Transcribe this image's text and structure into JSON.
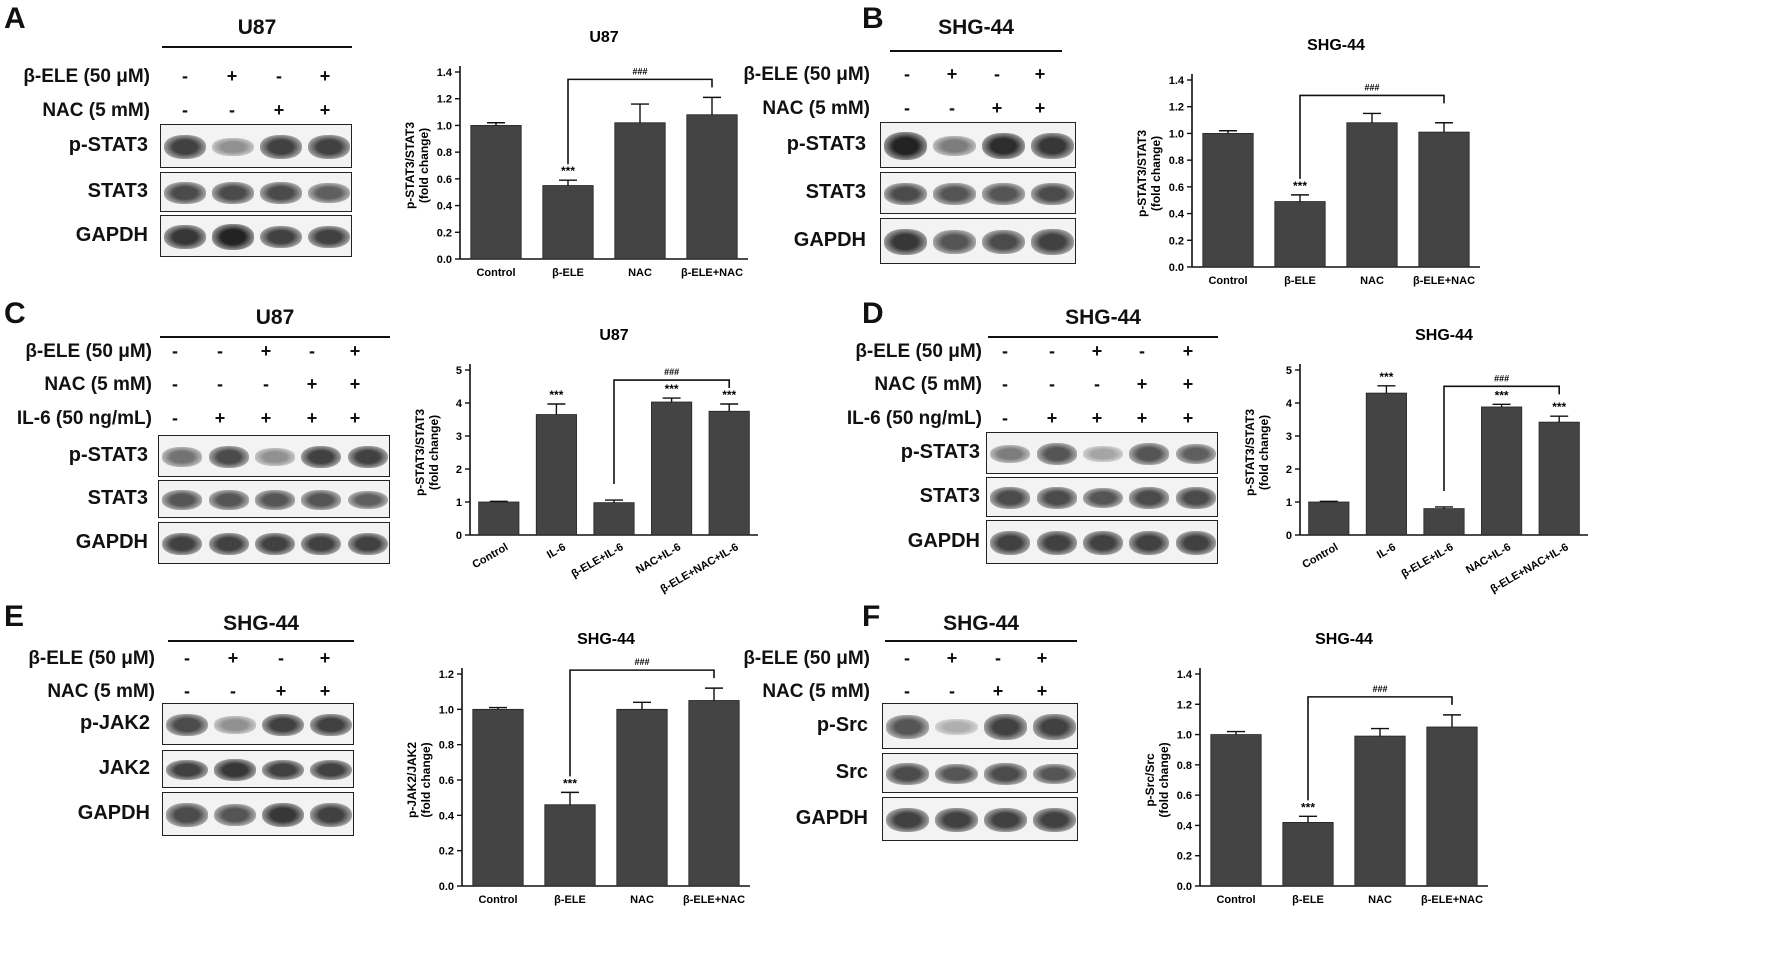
{
  "panels": [
    {
      "letter": "A",
      "cell_line": "U87",
      "treatments": [
        {
          "label": "β-ELE (50 μM)",
          "signs": [
            "-",
            "+",
            "-",
            "+"
          ]
        },
        {
          "label": "NAC (5 mM)",
          "signs": [
            "-",
            "-",
            "+",
            "+"
          ]
        }
      ],
      "blots": [
        {
          "label": "p-STAT3",
          "intensities": [
            0.85,
            0.45,
            0.85,
            0.85
          ]
        },
        {
          "label": "STAT3",
          "intensities": [
            0.8,
            0.8,
            0.8,
            0.7
          ]
        },
        {
          "label": "GAPDH",
          "intensities": [
            0.9,
            1.0,
            0.85,
            0.85
          ]
        }
      ]
    },
    {
      "letter": "B",
      "cell_line": "SHG-44",
      "treatments": [
        {
          "label": "β-ELE (50 μM)",
          "signs": [
            "-",
            "+",
            "-",
            "+"
          ]
        },
        {
          "label": "NAC (5 mM)",
          "signs": [
            "-",
            "-",
            "+",
            "+"
          ]
        }
      ],
      "blots": [
        {
          "label": "p-STAT3",
          "intensities": [
            1.0,
            0.55,
            0.95,
            0.9
          ]
        },
        {
          "label": "STAT3",
          "intensities": [
            0.8,
            0.75,
            0.75,
            0.8
          ]
        },
        {
          "label": "GAPDH",
          "intensities": [
            0.9,
            0.75,
            0.8,
            0.85
          ]
        }
      ]
    },
    {
      "letter": "C",
      "cell_line": "U87",
      "treatments": [
        {
          "label": "β-ELE (50 μM)",
          "signs": [
            "-",
            "-",
            "+",
            "-",
            "+"
          ]
        },
        {
          "label": "NAC (5 mM)",
          "signs": [
            "-",
            "-",
            "-",
            "+",
            "+"
          ]
        },
        {
          "label": "IL-6 (50 ng/mL)",
          "signs": [
            "-",
            "+",
            "+",
            "+",
            "+"
          ]
        }
      ],
      "blots": [
        {
          "label": "p-STAT3",
          "intensities": [
            0.6,
            0.8,
            0.45,
            0.85,
            0.85
          ]
        },
        {
          "label": "STAT3",
          "intensities": [
            0.75,
            0.75,
            0.75,
            0.75,
            0.7
          ]
        },
        {
          "label": "GAPDH",
          "intensities": [
            0.85,
            0.85,
            0.85,
            0.85,
            0.85
          ]
        }
      ]
    },
    {
      "letter": "D",
      "cell_line": "SHG-44",
      "treatments": [
        {
          "label": "β-ELE (50 μM)",
          "signs": [
            "-",
            "-",
            "+",
            "-",
            "+"
          ]
        },
        {
          "label": "NAC (5 mM)",
          "signs": [
            "-",
            "-",
            "-",
            "+",
            "+"
          ]
        },
        {
          "label": "IL-6 (50 ng/mL)",
          "signs": [
            "-",
            "+",
            "+",
            "+",
            "+"
          ]
        }
      ],
      "blots": [
        {
          "label": "p-STAT3",
          "intensities": [
            0.55,
            0.75,
            0.35,
            0.75,
            0.7
          ]
        },
        {
          "label": "STAT3",
          "intensities": [
            0.8,
            0.8,
            0.75,
            0.8,
            0.8
          ]
        },
        {
          "label": "GAPDH",
          "intensities": [
            0.85,
            0.85,
            0.85,
            0.85,
            0.85
          ]
        }
      ]
    },
    {
      "letter": "E",
      "cell_line": "SHG-44",
      "treatments": [
        {
          "label": "β-ELE (50 μM)",
          "signs": [
            "-",
            "+",
            "-",
            "+"
          ]
        },
        {
          "label": "NAC (5 mM)",
          "signs": [
            "-",
            "-",
            "+",
            "+"
          ]
        }
      ],
      "blots": [
        {
          "label": "p-JAK2",
          "intensities": [
            0.8,
            0.45,
            0.85,
            0.85
          ]
        },
        {
          "label": "JAK2",
          "intensities": [
            0.85,
            0.9,
            0.85,
            0.85
          ]
        },
        {
          "label": "GAPDH",
          "intensities": [
            0.8,
            0.75,
            0.9,
            0.85
          ]
        }
      ]
    },
    {
      "letter": "F",
      "cell_line": "SHG-44",
      "treatments": [
        {
          "label": "β-ELE (50 μM)",
          "signs": [
            "-",
            "+",
            "-",
            "+"
          ]
        },
        {
          "label": "NAC (5 mM)",
          "signs": [
            "-",
            "-",
            "+",
            "+"
          ]
        }
      ],
      "blots": [
        {
          "label": "p-Src",
          "intensities": [
            0.75,
            0.3,
            0.85,
            0.85
          ]
        },
        {
          "label": "Src",
          "intensities": [
            0.8,
            0.75,
            0.8,
            0.75
          ]
        },
        {
          "label": "GAPDH",
          "intensities": [
            0.85,
            0.85,
            0.85,
            0.85
          ]
        }
      ]
    }
  ],
  "chart_data": [
    {
      "type": "bar",
      "title": "U87",
      "ylabel": "p-STAT3/STAT3\n(fold change)",
      "categories": [
        "Control",
        "β-ELE",
        "NAC",
        "β-ELE+NAC"
      ],
      "values": [
        1.0,
        0.55,
        1.02,
        1.08
      ],
      "errors": [
        0.02,
        0.04,
        0.14,
        0.13
      ],
      "ylim": [
        0,
        1.4
      ],
      "yticks": [
        "0.0",
        "0.2",
        "0.4",
        "0.6",
        "0.8",
        "1.0",
        "1.2",
        "1.4"
      ],
      "annotations": [
        {
          "index": 1,
          "text": "***"
        }
      ],
      "bracket": {
        "from": 1,
        "to": 3,
        "text": "###"
      },
      "rotated_labels": false
    },
    {
      "type": "bar",
      "title": "SHG-44",
      "ylabel": "p-STAT3/STAT3\n(fold change)",
      "categories": [
        "Control",
        "β-ELE",
        "NAC",
        "β-ELE+NAC"
      ],
      "values": [
        1.0,
        0.49,
        1.08,
        1.01
      ],
      "errors": [
        0.02,
        0.05,
        0.07,
        0.07
      ],
      "ylim": [
        0,
        1.4
      ],
      "yticks": [
        "0.0",
        "0.2",
        "0.4",
        "0.6",
        "0.8",
        "1.0",
        "1.2",
        "1.4"
      ],
      "annotations": [
        {
          "index": 1,
          "text": "***"
        }
      ],
      "bracket": {
        "from": 1,
        "to": 3,
        "text": "###"
      },
      "rotated_labels": false
    },
    {
      "type": "bar",
      "title": "U87",
      "ylabel": "p-STAT3/STAT3\n(fold change)",
      "categories": [
        "Control",
        "IL-6",
        "β-ELE+IL-6",
        "NAC+IL-6",
        "β-ELE+NAC+IL-6"
      ],
      "values": [
        1.0,
        3.65,
        0.98,
        4.03,
        3.75
      ],
      "errors": [
        0.02,
        0.32,
        0.08,
        0.12,
        0.22
      ],
      "ylim": [
        0,
        5
      ],
      "yticks": [
        "0",
        "1",
        "2",
        "3",
        "4",
        "5"
      ],
      "annotations": [
        {
          "index": 1,
          "text": "***"
        },
        {
          "index": 3,
          "text": "***"
        },
        {
          "index": 4,
          "text": "***"
        }
      ],
      "bracket": {
        "from": 2,
        "to": 4,
        "text": "###"
      },
      "rotated_labels": true
    },
    {
      "type": "bar",
      "title": "SHG-44",
      "ylabel": "p-STAT3/STAT3\n(fold change)",
      "categories": [
        "Control",
        "IL-6",
        "β-ELE+IL-6",
        "NAC+IL-6",
        "β-ELE+NAC+IL-6"
      ],
      "values": [
        1.0,
        4.3,
        0.8,
        3.88,
        3.42
      ],
      "errors": [
        0.02,
        0.22,
        0.05,
        0.08,
        0.18
      ],
      "ylim": [
        0,
        5
      ],
      "yticks": [
        "0",
        "1",
        "2",
        "3",
        "4",
        "5"
      ],
      "annotations": [
        {
          "index": 1,
          "text": "***"
        },
        {
          "index": 3,
          "text": "***"
        },
        {
          "index": 4,
          "text": "***"
        }
      ],
      "bracket": {
        "from": 2,
        "to": 4,
        "text": "###"
      },
      "rotated_labels": true
    },
    {
      "type": "bar",
      "title": "SHG-44",
      "ylabel": "p-JAK2/JAK2\n(fold change)",
      "categories": [
        "Control",
        "β-ELE",
        "NAC",
        "β-ELE+NAC"
      ],
      "values": [
        1.0,
        0.46,
        1.0,
        1.05
      ],
      "errors": [
        0.01,
        0.07,
        0.04,
        0.07
      ],
      "ylim": [
        0,
        1.2
      ],
      "yticks": [
        "0.0",
        "0.2",
        "0.4",
        "0.6",
        "0.8",
        "1.0",
        "1.2"
      ],
      "annotations": [
        {
          "index": 1,
          "text": "***"
        }
      ],
      "bracket": {
        "from": 1,
        "to": 3,
        "text": "###"
      },
      "rotated_labels": false
    },
    {
      "type": "bar",
      "title": "SHG-44",
      "ylabel": "p-Src/Src\n(fold change)",
      "categories": [
        "Control",
        "β-ELE",
        "NAC",
        "β-ELE+NAC"
      ],
      "values": [
        1.0,
        0.42,
        0.99,
        1.05
      ],
      "errors": [
        0.02,
        0.04,
        0.05,
        0.08
      ],
      "ylim": [
        0,
        1.4
      ],
      "yticks": [
        "0.0",
        "0.2",
        "0.4",
        "0.6",
        "0.8",
        "1.0",
        "1.2",
        "1.4"
      ],
      "annotations": [
        {
          "index": 1,
          "text": "***"
        }
      ],
      "bracket": {
        "from": 1,
        "to": 3,
        "text": "###"
      },
      "rotated_labels": false
    }
  ]
}
